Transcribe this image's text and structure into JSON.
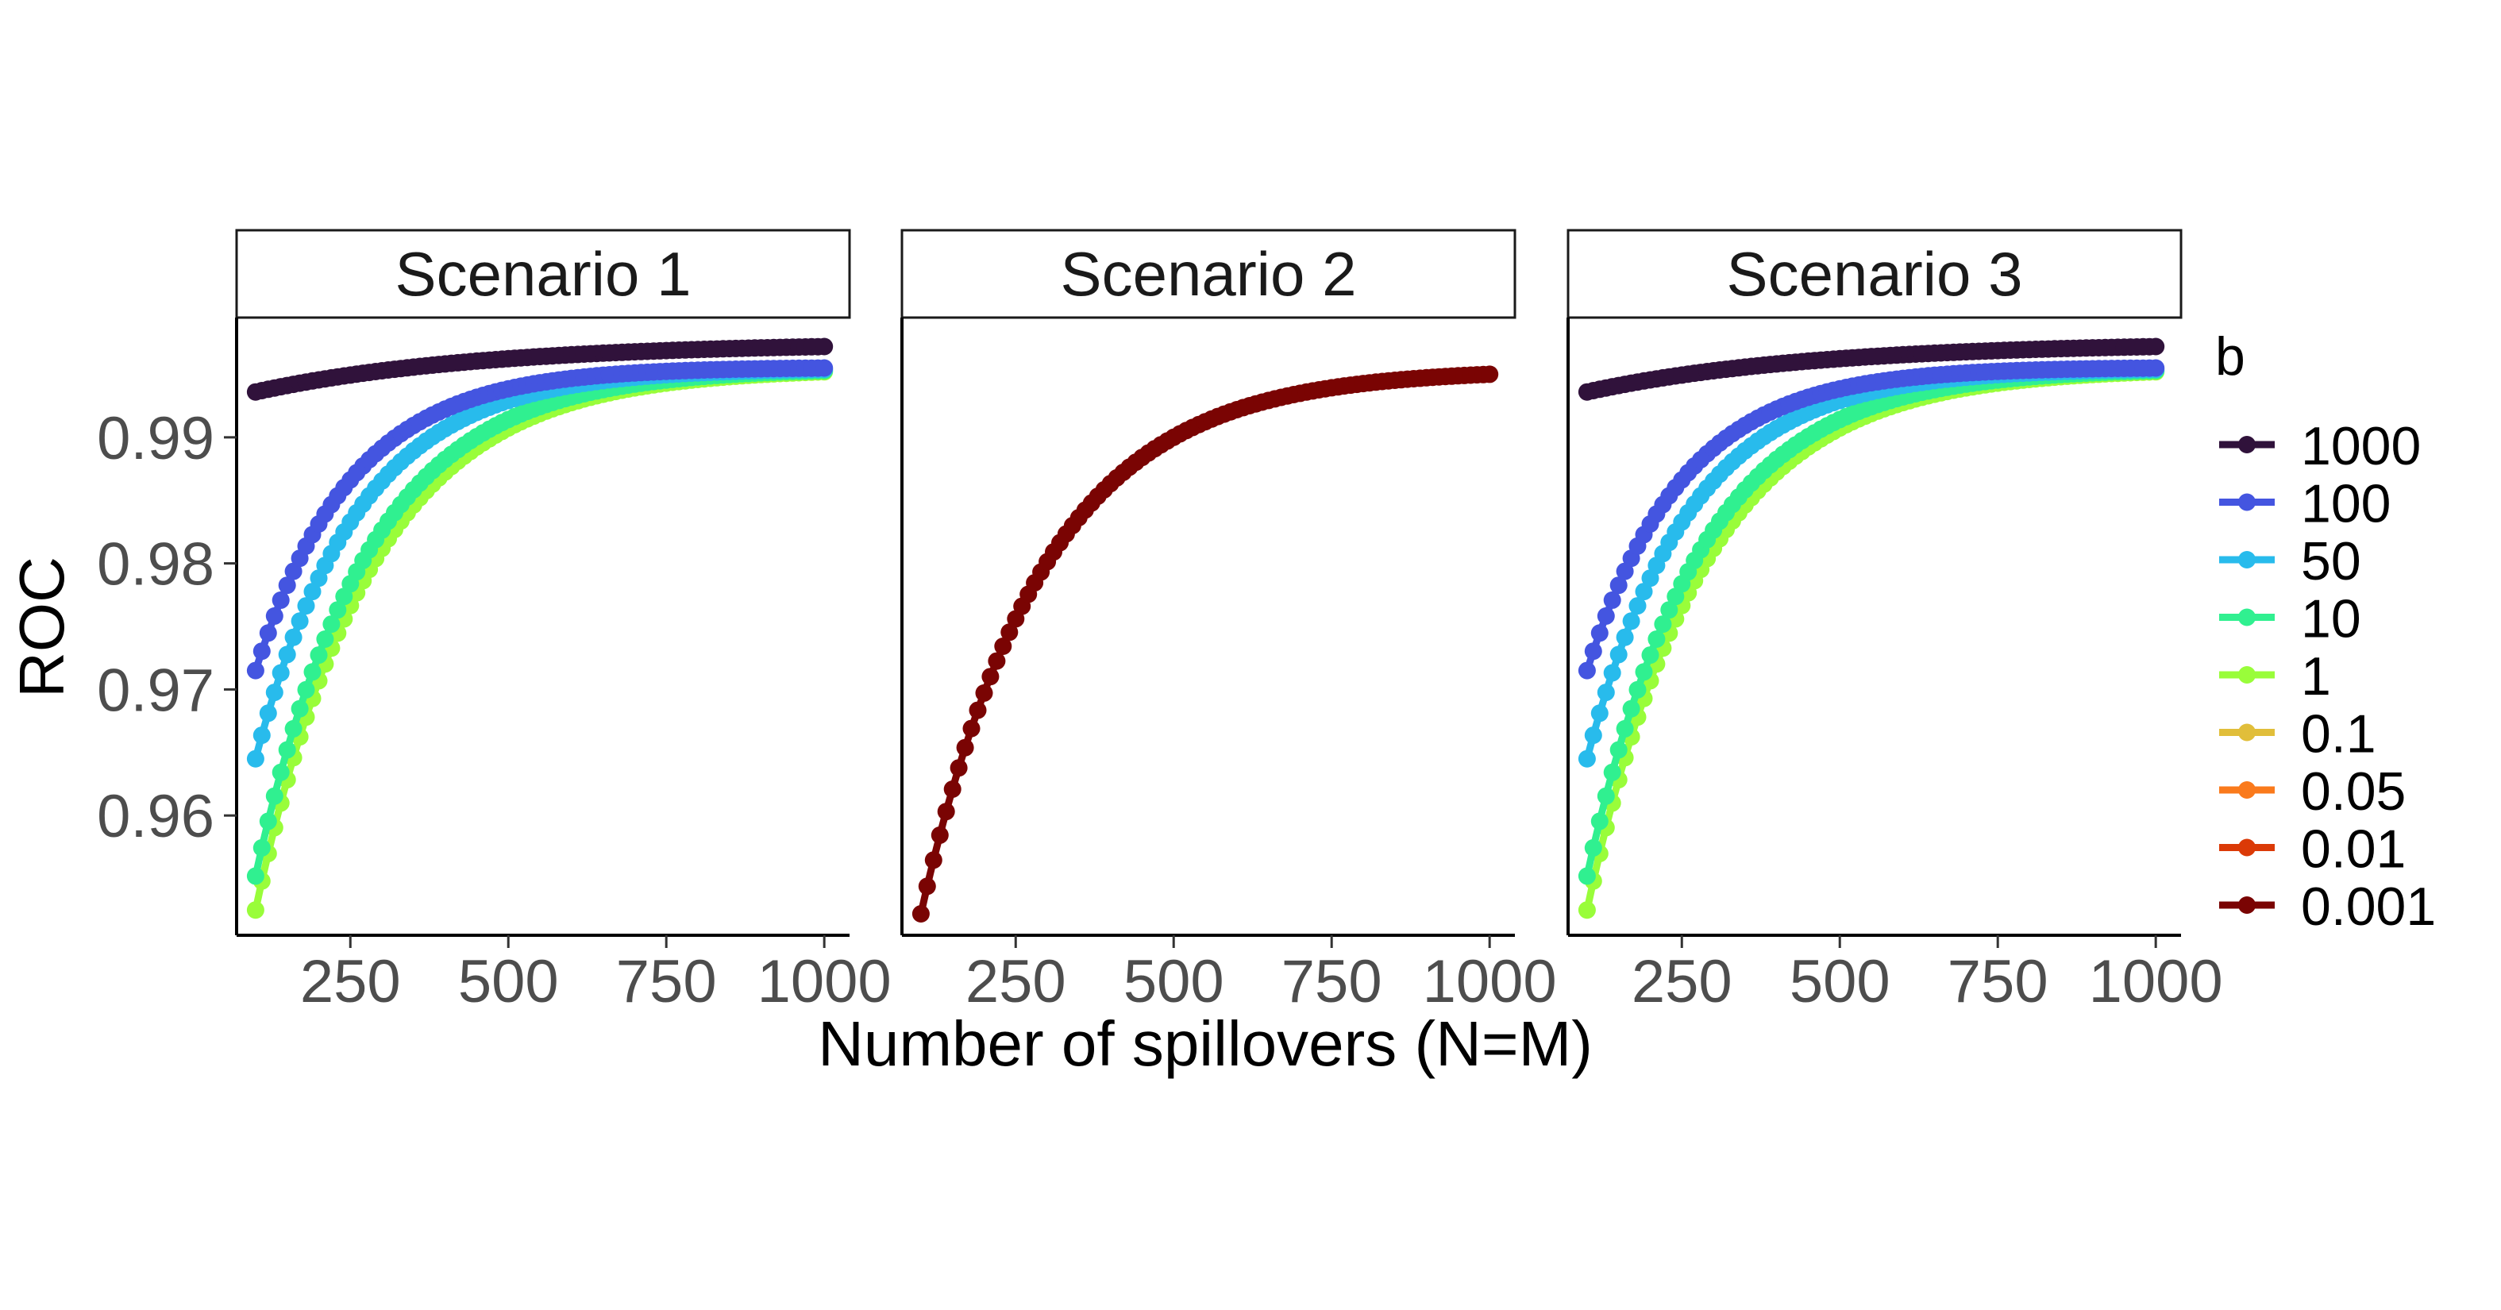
{
  "chart_data": {
    "type": "scatter",
    "xlabel": "Number of spillovers (N=M)",
    "ylabel": "ROC",
    "x_ticks": [
      250,
      500,
      750,
      1000
    ],
    "y_ticks": [
      0.96,
      0.97,
      0.98,
      0.99
    ],
    "x_tick_labels": [
      "250",
      "500",
      "750",
      "1000"
    ],
    "y_tick_labels": [
      "0.96",
      "0.97",
      "0.98",
      "0.99"
    ],
    "xlim": [
      70,
      1040
    ],
    "ylim": [
      0.9505,
      0.9995
    ],
    "x_range": [
      100,
      1000
    ],
    "legend": {
      "title": "b",
      "position": "right",
      "items": [
        {
          "label": "1000",
          "color": "#30123b"
        },
        {
          "label": "100",
          "color": "#4455e0"
        },
        {
          "label": "50",
          "color": "#28bbec"
        },
        {
          "label": "10",
          "color": "#30f090"
        },
        {
          "label": "1",
          "color": "#99fd3a"
        },
        {
          "label": "0.1",
          "color": "#e1be3a"
        },
        {
          "label": "0.05",
          "color": "#fa7a1c"
        },
        {
          "label": "0.01",
          "color": "#db3a07"
        },
        {
          "label": "0.001",
          "color": "#7a0403"
        }
      ]
    },
    "panels": [
      {
        "title": "Scenario 1",
        "series": [
          {
            "name": "1",
            "color": "#99fd3a",
            "y_start": 0.9525,
            "y_end": 0.9952,
            "k": 0.0055
          },
          {
            "name": "10",
            "color": "#30f090",
            "y_start": 0.9552,
            "y_end": 0.9953,
            "k": 0.0057
          },
          {
            "name": "50",
            "color": "#28bbec",
            "y_start": 0.9645,
            "y_end": 0.9954,
            "k": 0.0062
          },
          {
            "name": "100",
            "color": "#4455e0",
            "y_start": 0.9715,
            "y_end": 0.9955,
            "k": 0.0066
          },
          {
            "name": "1000",
            "color": "#30123b",
            "y_start": 0.9936,
            "y_end": 0.9972,
            "k": 0.0028
          }
        ]
      },
      {
        "title": "Scenario 2",
        "series": [
          {
            "name": "0.001",
            "color": "#7a0403",
            "y_start": 0.9522,
            "y_end": 0.995,
            "k": 0.0052
          }
        ]
      },
      {
        "title": "Scenario 3",
        "series": [
          {
            "name": "1",
            "color": "#99fd3a",
            "y_start": 0.9525,
            "y_end": 0.9952,
            "k": 0.0055
          },
          {
            "name": "10",
            "color": "#30f090",
            "y_start": 0.9552,
            "y_end": 0.9953,
            "k": 0.0057
          },
          {
            "name": "50",
            "color": "#28bbec",
            "y_start": 0.9645,
            "y_end": 0.9954,
            "k": 0.0062
          },
          {
            "name": "100",
            "color": "#4455e0",
            "y_start": 0.9715,
            "y_end": 0.9955,
            "k": 0.0066
          },
          {
            "name": "1000",
            "color": "#30123b",
            "y_start": 0.9936,
            "y_end": 0.9972,
            "k": 0.0028
          }
        ]
      }
    ]
  }
}
